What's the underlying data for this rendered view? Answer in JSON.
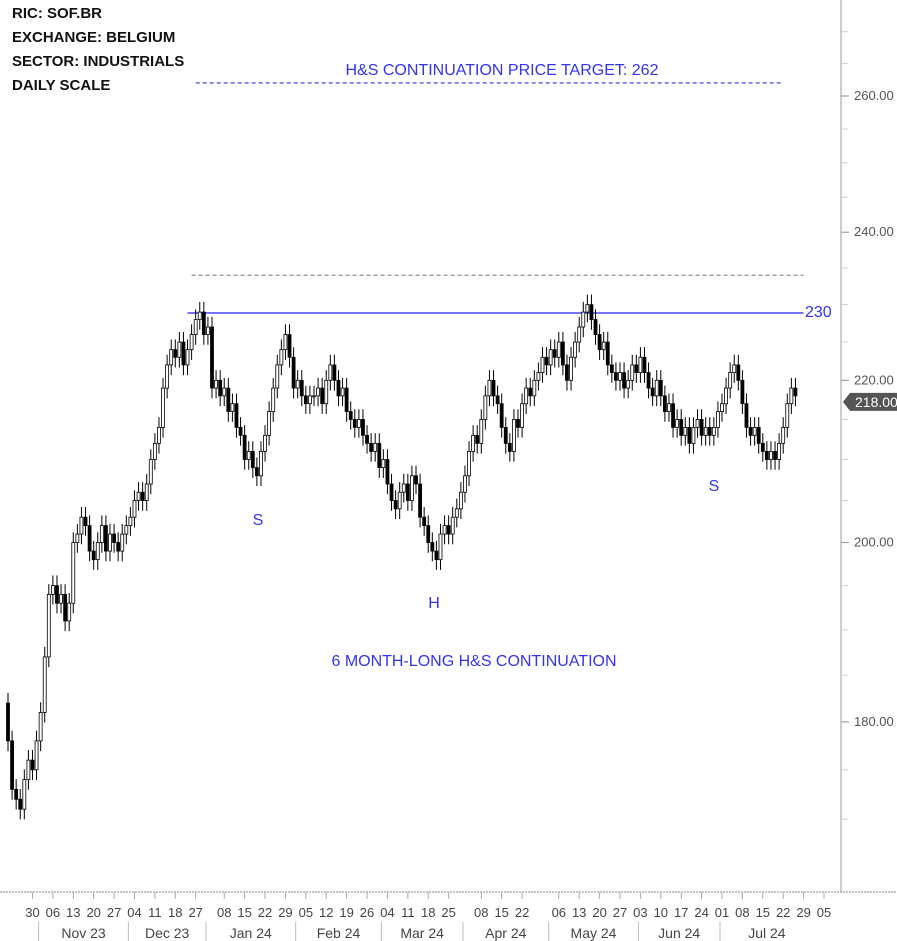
{
  "header": {
    "ric": "RIC:  SOF.BR",
    "exchange": "EXCHANGE:  BELGIUM",
    "sector": "SECTOR:  INDUSTRIALS",
    "scale": "DAILY SCALE"
  },
  "chart_data": {
    "type": "candlestick",
    "first_date": "2023-10-20",
    "last_date": "2024-07-26",
    "y_scale": "log",
    "ylim": [
      165,
      275
    ],
    "y_ticks": [
      "180.00",
      "200.00",
      "220.00",
      "240.00",
      "260.00"
    ],
    "y_tick_values": [
      180,
      200,
      220,
      240,
      260
    ],
    "last_price_label": "218.00",
    "last_price": 218,
    "close": [
      178,
      173,
      172,
      171,
      174,
      176,
      175,
      178,
      181,
      187,
      194,
      195,
      193,
      194,
      191,
      193,
      200,
      201,
      203,
      202,
      199,
      198,
      200,
      202,
      199,
      201,
      200,
      199,
      201,
      202,
      203,
      205,
      206,
      205,
      207,
      210,
      212,
      214,
      219,
      222,
      224,
      223,
      225,
      222,
      224,
      226,
      228,
      229,
      226,
      227,
      219,
      220,
      218,
      219,
      216,
      217,
      214,
      213,
      210,
      211,
      209,
      208,
      211,
      213,
      216,
      219,
      222,
      224,
      226,
      223,
      219,
      220,
      218,
      217,
      218,
      218,
      219,
      217,
      220,
      222,
      220,
      218,
      219,
      216,
      215,
      214,
      215,
      213,
      212,
      211,
      212,
      209,
      210,
      207,
      205,
      204,
      206,
      207,
      205,
      208,
      207,
      203,
      202,
      200,
      199,
      198,
      201,
      202,
      201,
      203,
      204,
      206,
      208,
      211,
      213,
      212,
      215,
      218,
      220,
      218,
      217,
      214,
      212,
      211,
      215,
      214,
      217,
      219,
      218,
      220,
      221,
      223,
      222,
      224,
      223,
      225,
      222,
      220,
      223,
      225,
      227,
      229,
      230,
      228,
      226,
      224,
      225,
      222,
      221,
      220,
      221,
      219,
      220,
      222,
      221,
      223,
      221,
      219,
      218,
      220,
      218,
      216,
      217,
      214,
      215,
      213,
      214,
      212,
      214,
      215,
      213,
      214,
      213,
      214,
      216,
      217,
      219,
      221,
      222,
      220,
      217,
      214,
      213,
      214,
      212,
      211,
      210,
      211,
      210,
      212,
      214,
      217,
      219,
      218
    ],
    "x_ticks": [
      {
        "date": "2023-10-30",
        "label": "30"
      },
      {
        "date": "2023-11-06",
        "label": "06"
      },
      {
        "date": "2023-11-13",
        "label": "13"
      },
      {
        "date": "2023-11-20",
        "label": "20"
      },
      {
        "date": "2023-11-27",
        "label": "27"
      },
      {
        "date": "2023-12-04",
        "label": "04"
      },
      {
        "date": "2023-12-11",
        "label": "11"
      },
      {
        "date": "2023-12-18",
        "label": "18"
      },
      {
        "date": "2023-12-27",
        "label": "27"
      },
      {
        "date": "2024-01-08",
        "label": "08"
      },
      {
        "date": "2024-01-15",
        "label": "15"
      },
      {
        "date": "2024-01-22",
        "label": "22"
      },
      {
        "date": "2024-01-29",
        "label": "29"
      },
      {
        "date": "2024-02-05",
        "label": "05"
      },
      {
        "date": "2024-02-12",
        "label": "12"
      },
      {
        "date": "2024-02-19",
        "label": "19"
      },
      {
        "date": "2024-02-26",
        "label": "26"
      },
      {
        "date": "2024-03-04",
        "label": "04"
      },
      {
        "date": "2024-03-11",
        "label": "11"
      },
      {
        "date": "2024-03-18",
        "label": "18"
      },
      {
        "date": "2024-03-25",
        "label": "25"
      },
      {
        "date": "2024-04-08",
        "label": "08"
      },
      {
        "date": "2024-04-15",
        "label": "15"
      },
      {
        "date": "2024-04-22",
        "label": "22"
      },
      {
        "date": "2024-05-06",
        "label": "06"
      },
      {
        "date": "2024-05-13",
        "label": "13"
      },
      {
        "date": "2024-05-20",
        "label": "20"
      },
      {
        "date": "2024-05-27",
        "label": "27"
      },
      {
        "date": "2024-06-03",
        "label": "03"
      },
      {
        "date": "2024-06-10",
        "label": "10"
      },
      {
        "date": "2024-06-17",
        "label": "17"
      },
      {
        "date": "2024-06-24",
        "label": "24"
      },
      {
        "date": "2024-07-01",
        "label": "01"
      },
      {
        "date": "2024-07-08",
        "label": "08"
      },
      {
        "date": "2024-07-15",
        "label": "15"
      },
      {
        "date": "2024-07-22",
        "label": "22"
      },
      {
        "date": "2024-07-29",
        "label": "29"
      },
      {
        "date": "2024-08-05",
        "label": "05"
      }
    ],
    "months": [
      {
        "label": "Nov 23",
        "start": "2023-11-01",
        "end": "2023-12-01"
      },
      {
        "label": "Dec 23",
        "start": "2023-12-01",
        "end": "2024-01-02"
      },
      {
        "label": "Jan 24",
        "start": "2024-01-02",
        "end": "2024-02-01"
      },
      {
        "label": "Feb 24",
        "start": "2024-02-01",
        "end": "2024-03-01"
      },
      {
        "label": "Mar 24",
        "start": "2024-03-01",
        "end": "2024-04-02"
      },
      {
        "label": "Apr 24",
        "start": "2024-04-02",
        "end": "2024-05-02"
      },
      {
        "label": "May 24",
        "start": "2024-05-02",
        "end": "2024-06-03"
      },
      {
        "label": "Jun 24",
        "start": "2024-06-03",
        "end": "2024-07-01"
      },
      {
        "label": "Jul 24",
        "start": "2024-07-01",
        "end": "2024-08-01"
      }
    ],
    "holidays": [
      "2023-12-25",
      "2023-12-26",
      "2024-01-01",
      "2024-03-29",
      "2024-04-01",
      "2024-05-01"
    ],
    "levels": [
      {
        "name": "price-target",
        "price": 262,
        "style": "dashed",
        "color": "#5555ee",
        "from": "2023-12-27",
        "to": "2024-07-19"
      },
      {
        "name": "upper-dashed",
        "price": 234,
        "style": "dashed",
        "color": "#999999",
        "from": "2023-12-22",
        "to": "2024-07-26"
      },
      {
        "name": "neckline",
        "price": 230,
        "label": "230",
        "style": "solid",
        "color": "#4444ee",
        "from": "2023-12-21",
        "to": "2024-07-26"
      }
    ],
    "annotations": {
      "target": "H&S CONTINUATION PRICE TARGET: 262",
      "left_shoulder": "S",
      "head": "H",
      "right_shoulder": "S",
      "pattern": "6 MONTH-LONG H&S CONTINUATION"
    },
    "colors": {
      "annotation": "#3333ee",
      "candle": "#000000",
      "price_tag": "#555555"
    }
  }
}
